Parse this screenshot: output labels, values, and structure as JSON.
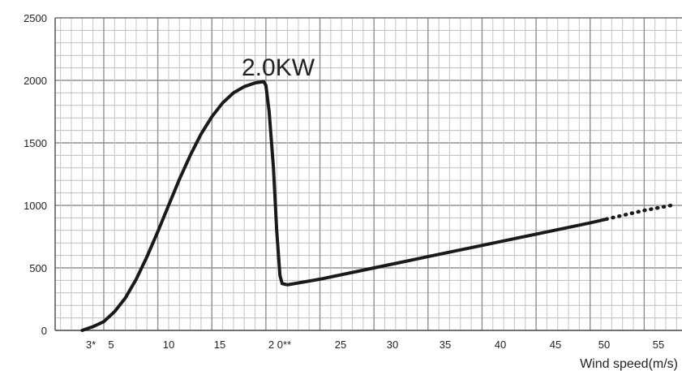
{
  "chart_data": {
    "type": "line",
    "xlabel": "Wind speed(m/s)",
    "ylabel": "",
    "ylim": [
      0,
      2500
    ],
    "annotation": "2.0KW",
    "grid": true,
    "x_tick_labels": [
      "3*",
      "5",
      "10",
      "15",
      "2 0**",
      "25",
      "30",
      "35",
      "40",
      "45",
      "50",
      "55"
    ],
    "y_tick_labels": [
      "0",
      "500",
      "1000",
      "1500",
      "2000",
      "2500"
    ],
    "series": [
      {
        "style": "solid",
        "x": [
          3,
          4,
          5,
          6,
          7,
          8,
          9,
          10,
          11,
          12,
          13,
          14,
          15,
          16,
          17,
          18,
          19,
          19.8,
          20,
          20.3,
          20.7,
          21,
          21.3,
          21.5,
          22,
          23,
          25,
          30,
          35,
          40,
          45,
          50,
          51.5
        ],
        "y": [
          0,
          30,
          70,
          150,
          260,
          410,
          590,
          790,
          1000,
          1210,
          1400,
          1570,
          1710,
          1820,
          1900,
          1950,
          1980,
          1990,
          1960,
          1750,
          1300,
          800,
          440,
          375,
          365,
          380,
          410,
          500,
          590,
          680,
          770,
          860,
          890
        ]
      },
      {
        "style": "dotted",
        "x": [
          51.5,
          55,
          57.5
        ],
        "y": [
          890,
          960,
          1000
        ]
      }
    ]
  }
}
